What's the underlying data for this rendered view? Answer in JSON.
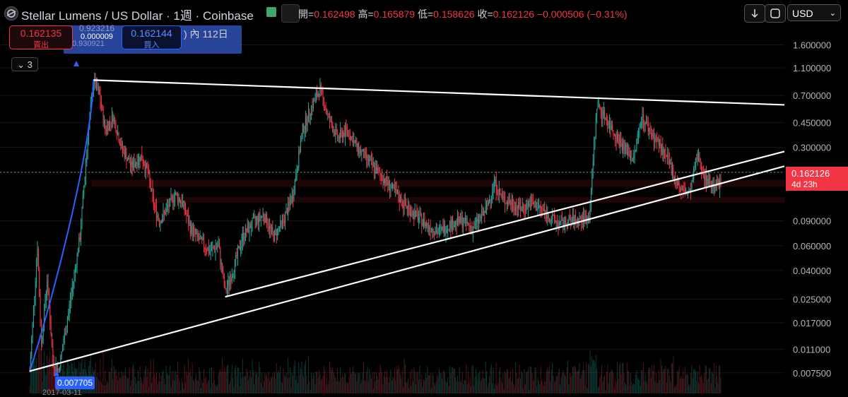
{
  "header": {
    "symbol_title": "Stellar Lumens / US Dollar · 1週 · Coinbase",
    "ohlc": {
      "open_label": "開=",
      "open": "0.162498",
      "high_label": "高=",
      "high": "0.165879",
      "low_label": "低=",
      "low": "0.158626",
      "close_label": "收=",
      "close": "0.162126",
      "change": "−0.000506 (−0.31%)"
    },
    "currency": "USD"
  },
  "trade": {
    "sell_price": "0.162135",
    "sell_label": "賣出",
    "buy_price": "0.162144",
    "buy_label": "買入",
    "spread": "0.000009",
    "overlay_top": "0.923216",
    "overlay_sub": "0.930921",
    "overlay_text": ") 內 112日"
  },
  "indicator_collapse": "3",
  "colors": {
    "up": "#26a69a",
    "down": "#f23645",
    "trendline": "#ffffff",
    "zone": "#f23645",
    "curve": "#2962ff"
  },
  "chart_data": {
    "type": "candlestick",
    "scale": "log",
    "ylim": [
      0.0058,
      2.1
    ],
    "yticks": [
      "1.600000",
      "1.100000",
      "0.700000",
      "0.450000",
      "0.300000",
      "0.200000",
      "0.090000",
      "0.060000",
      "0.040000",
      "0.025000",
      "0.017000",
      "0.011000",
      "0.007500"
    ],
    "ytick_values": [
      1.6,
      1.1,
      0.7,
      0.45,
      0.3,
      0.2,
      0.09,
      0.06,
      0.04,
      0.025,
      0.017,
      0.011,
      0.0075
    ],
    "last_price_label": "0.162126",
    "countdown_label": "4d 23h",
    "low_point": {
      "value": "0.007705",
      "date": "2017-03-11"
    },
    "path": [
      [
        0,
        0.0077
      ],
      [
        8,
        0.06
      ],
      [
        12,
        0.012
      ],
      [
        18,
        0.035
      ],
      [
        24,
        0.009
      ],
      [
        30,
        0.0078
      ],
      [
        40,
        0.02
      ],
      [
        52,
        0.07
      ],
      [
        60,
        0.35
      ],
      [
        66,
        0.9
      ],
      [
        72,
        0.7
      ],
      [
        78,
        0.4
      ],
      [
        86,
        0.5
      ],
      [
        95,
        0.3
      ],
      [
        105,
        0.22
      ],
      [
        115,
        0.26
      ],
      [
        122,
        0.2
      ],
      [
        128,
        0.12
      ],
      [
        134,
        0.09
      ],
      [
        142,
        0.11
      ],
      [
        150,
        0.14
      ],
      [
        158,
        0.12
      ],
      [
        166,
        0.08
      ],
      [
        176,
        0.065
      ],
      [
        186,
        0.055
      ],
      [
        195,
        0.06
      ],
      [
        202,
        0.028
      ],
      [
        210,
        0.04
      ],
      [
        220,
        0.07
      ],
      [
        232,
        0.09
      ],
      [
        242,
        0.1
      ],
      [
        252,
        0.07
      ],
      [
        262,
        0.09
      ],
      [
        272,
        0.14
      ],
      [
        282,
        0.4
      ],
      [
        292,
        0.6
      ],
      [
        300,
        0.78
      ],
      [
        308,
        0.5
      ],
      [
        318,
        0.35
      ],
      [
        328,
        0.4
      ],
      [
        338,
        0.3
      ],
      [
        348,
        0.25
      ],
      [
        360,
        0.2
      ],
      [
        372,
        0.16
      ],
      [
        386,
        0.12
      ],
      [
        398,
        0.1
      ],
      [
        410,
        0.085
      ],
      [
        422,
        0.075
      ],
      [
        434,
        0.085
      ],
      [
        446,
        0.09
      ],
      [
        458,
        0.08
      ],
      [
        472,
        0.11
      ],
      [
        480,
        0.17
      ],
      [
        488,
        0.13
      ],
      [
        498,
        0.12
      ],
      [
        508,
        0.11
      ],
      [
        518,
        0.12
      ],
      [
        528,
        0.11
      ],
      [
        538,
        0.095
      ],
      [
        548,
        0.085
      ],
      [
        558,
        0.09
      ],
      [
        568,
        0.092
      ],
      [
        578,
        0.095
      ],
      [
        586,
        0.6
      ],
      [
        594,
        0.5
      ],
      [
        604,
        0.38
      ],
      [
        614,
        0.3
      ],
      [
        624,
        0.25
      ],
      [
        632,
        0.5
      ],
      [
        642,
        0.38
      ],
      [
        652,
        0.3
      ],
      [
        662,
        0.22
      ],
      [
        672,
        0.15
      ],
      [
        682,
        0.14
      ],
      [
        690,
        0.27
      ],
      [
        698,
        0.18
      ],
      [
        706,
        0.165
      ],
      [
        714,
        0.162
      ]
    ]
  }
}
